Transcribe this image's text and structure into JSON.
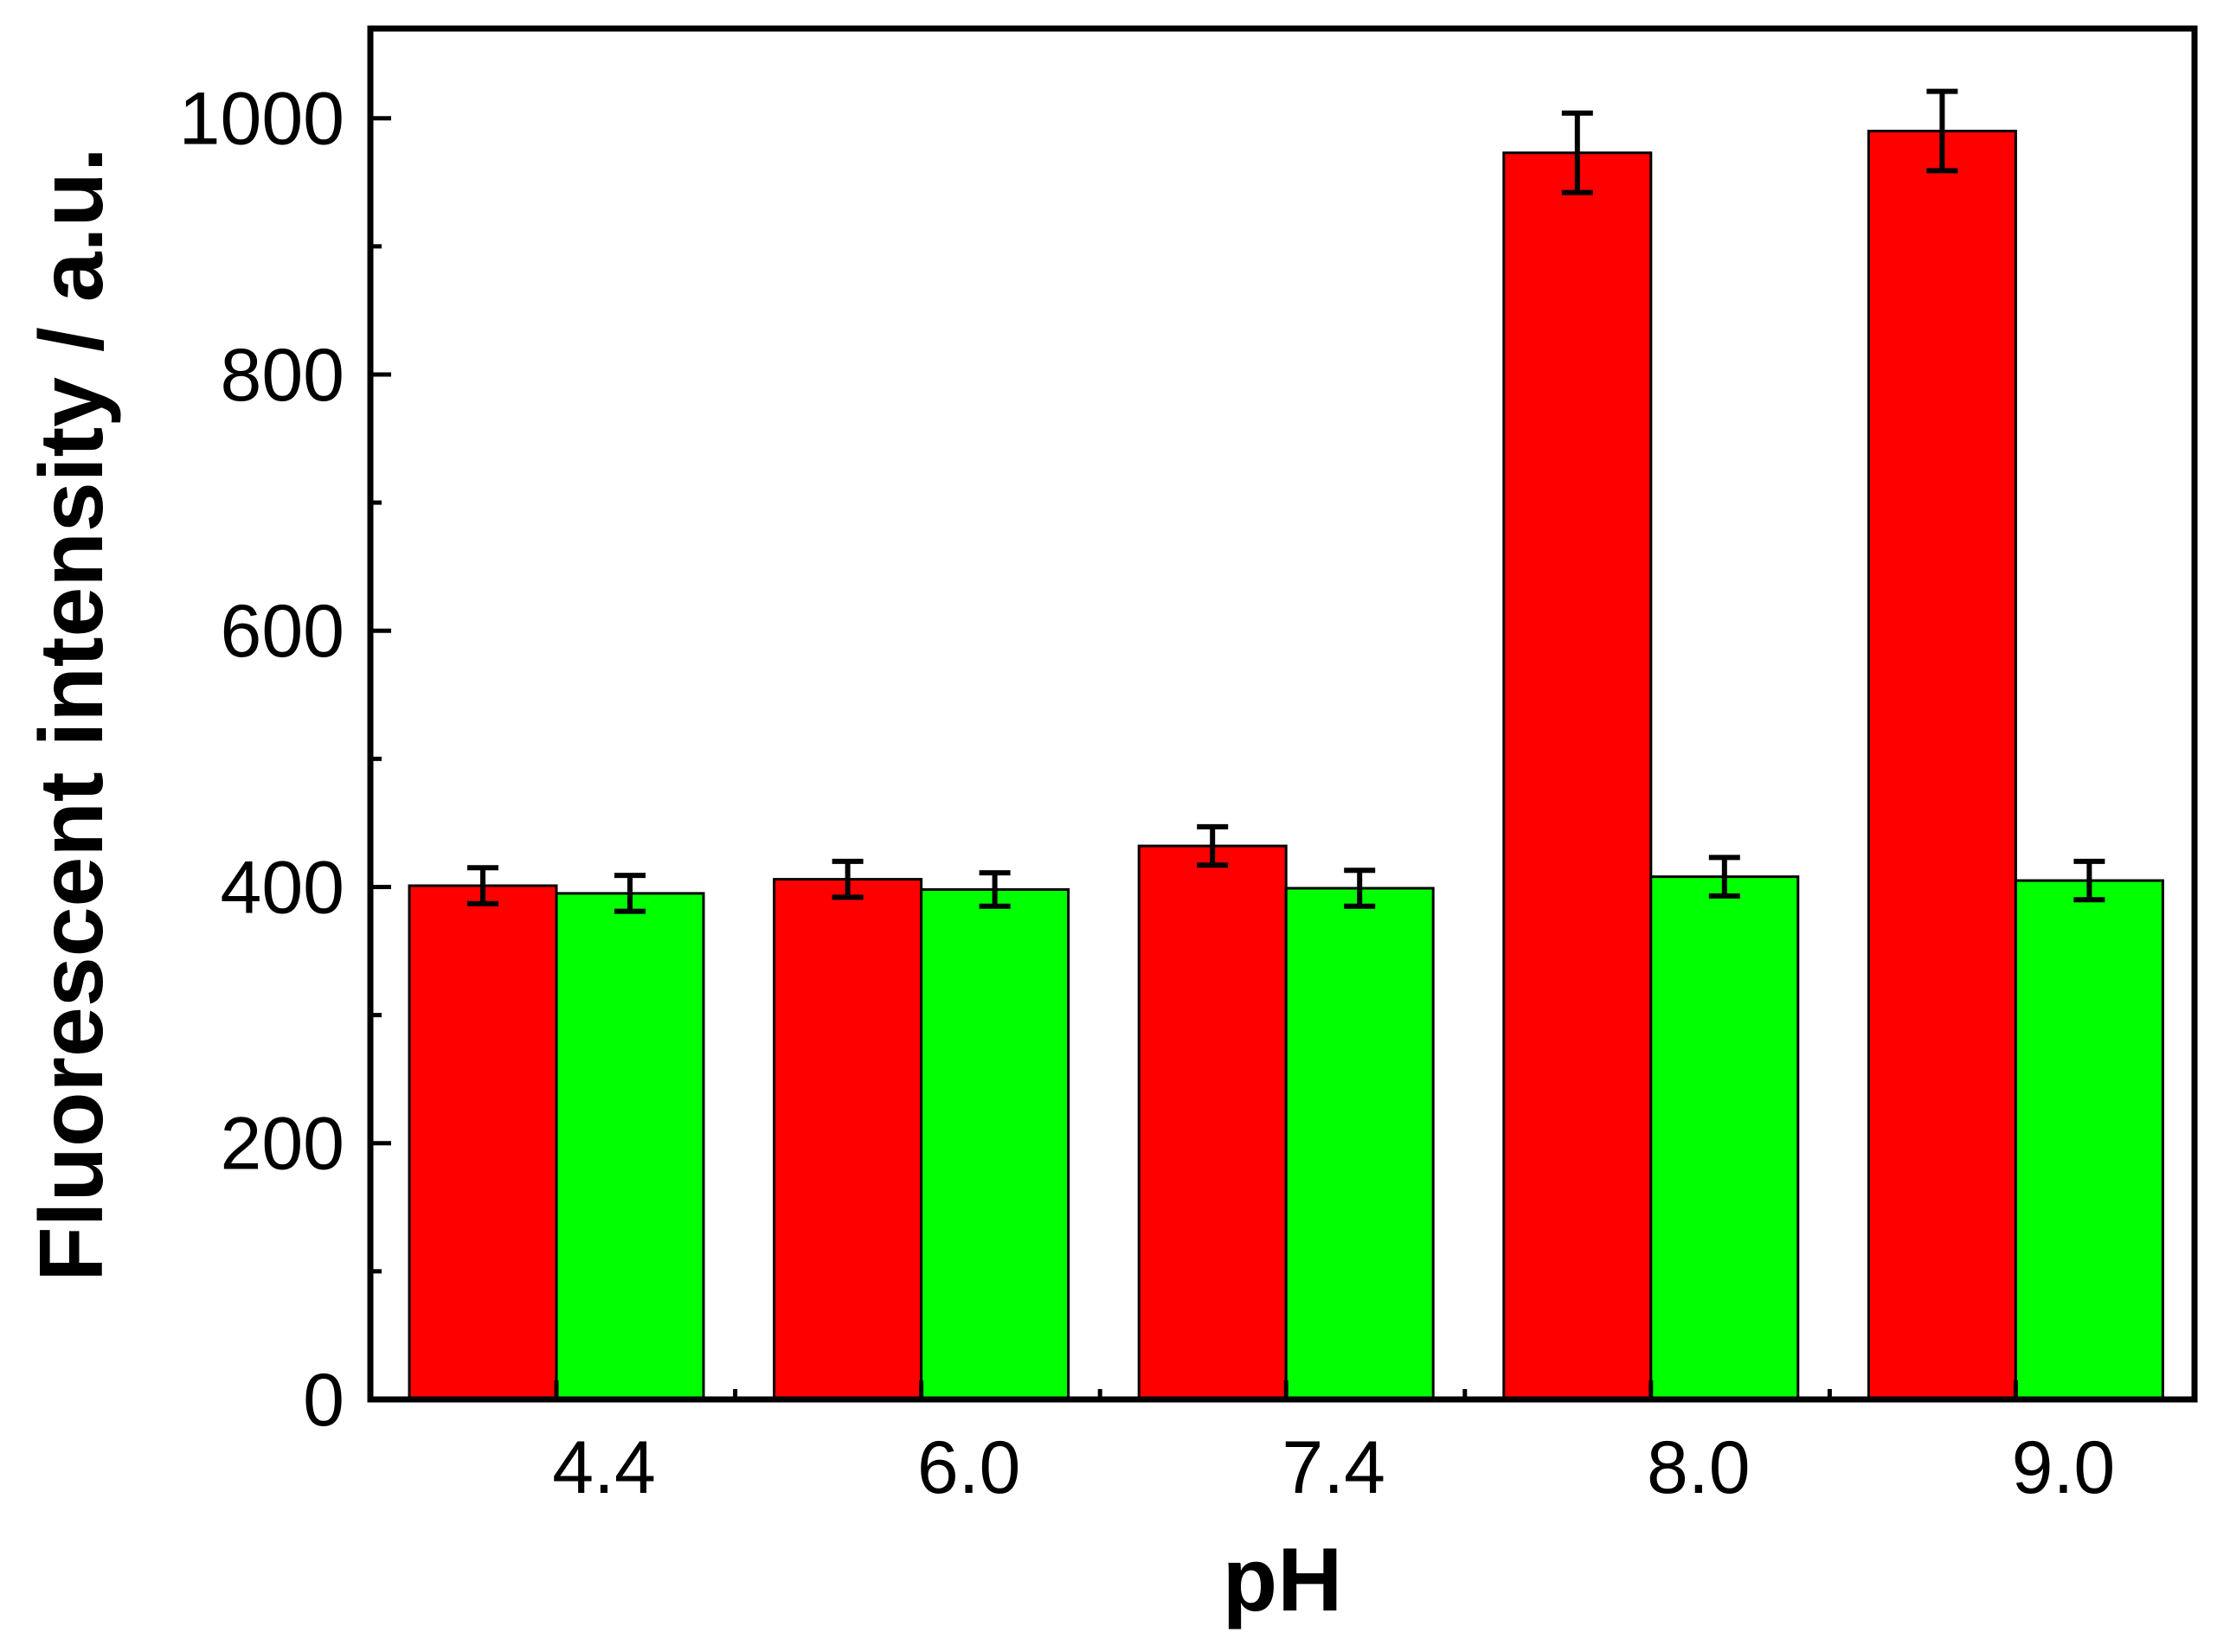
{
  "chart_data": {
    "type": "bar",
    "title": "",
    "xlabel": "pH",
    "ylabel": "Fluorescent intensity / a.u.",
    "categories": [
      "4.4",
      "6.0",
      "7.4",
      "8.0",
      "9.0"
    ],
    "ylim": [
      0,
      1070
    ],
    "yticks": [
      0,
      200,
      400,
      600,
      800,
      1000
    ],
    "grid": false,
    "legend": "none",
    "series": [
      {
        "name": "red series",
        "color": "#ff0000",
        "values": [
          401,
          406,
          432,
          973,
          990
        ],
        "errors": [
          14,
          14,
          15,
          31,
          31
        ]
      },
      {
        "name": "green series",
        "color": "#00ff00",
        "values": [
          395,
          398,
          399,
          408,
          405
        ],
        "errors": [
          14,
          13,
          14,
          15,
          15
        ]
      }
    ]
  }
}
